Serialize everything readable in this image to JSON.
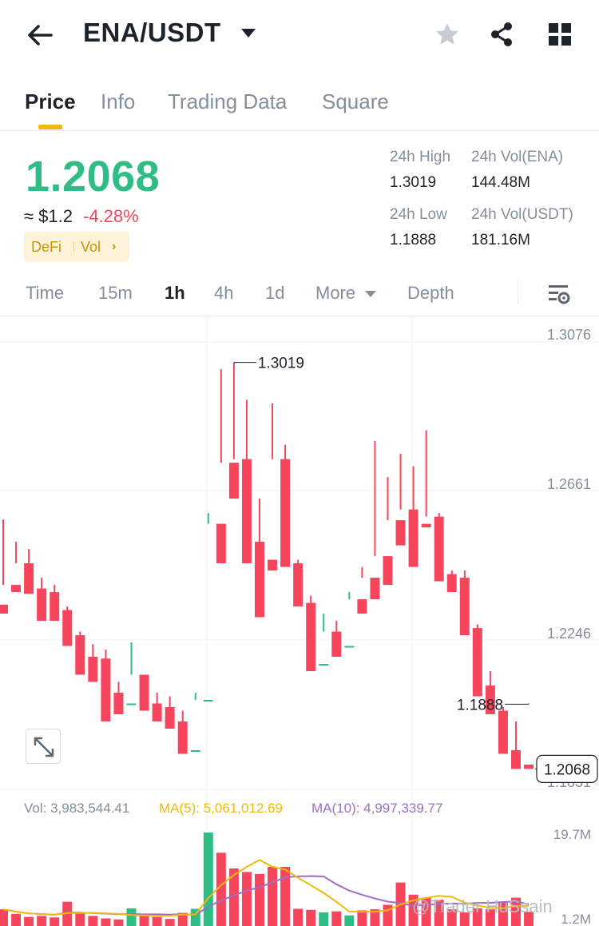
{
  "header": {
    "pair": "ENA/USDT",
    "icons": [
      "back-arrow-icon",
      "caret-down-icon",
      "star-icon",
      "share-icon",
      "grid-icon"
    ]
  },
  "tabs": [
    "Price",
    "Info",
    "Trading Data",
    "Square"
  ],
  "active_tab": "Price",
  "price": {
    "last": "1.2068",
    "approx": "≈ $1.2",
    "change": "-4.28%",
    "tags": [
      "DeFi",
      "Vol"
    ]
  },
  "stats": {
    "high_label": "24h High",
    "high": "1.3019",
    "low_label": "24h Low",
    "low": "1.1888",
    "vol_ena_label": "24h Vol(ENA)",
    "vol_ena": "144.48M",
    "vol_usdt_label": "24h Vol(USDT)",
    "vol_usdt": "181.16M"
  },
  "intervals": {
    "items": [
      "Time",
      "15m",
      "1h",
      "4h",
      "1d",
      "More",
      "Depth"
    ],
    "active": "1h"
  },
  "colors": {
    "up": "#2ebd85",
    "down": "#f6465d",
    "accent": "#f0b90b",
    "ma5": "#f0b90b",
    "ma10": "#9d6fc4"
  },
  "chart_data": {
    "type": "candlestick",
    "y_axis_labels": [
      "1.3076",
      "1.2661",
      "1.2246",
      "1.1831"
    ],
    "ylim": [
      1.1831,
      1.3076
    ],
    "last_price_tag": "1.2068",
    "high_marker": "1.3019",
    "low_marker": "1.1888",
    "candles": [
      [
        1.2345,
        1.2582,
        1.24,
        1.232
      ],
      [
        1.24,
        1.252,
        1.246,
        1.238
      ],
      [
        1.246,
        1.25,
        1.239,
        1.2375
      ],
      [
        1.239,
        1.242,
        1.238,
        1.23
      ],
      [
        1.238,
        1.24,
        1.233,
        1.23
      ],
      [
        1.233,
        1.234,
        1.226,
        1.223
      ],
      [
        1.226,
        1.227,
        1.22,
        1.215
      ],
      [
        1.22,
        1.2235,
        1.2195,
        1.213
      ],
      [
        1.2195,
        1.222,
        1.21,
        1.202
      ],
      [
        1.21,
        1.213,
        1.207,
        1.204
      ],
      [
        1.207,
        1.224,
        1.215,
        1.207
      ],
      [
        1.215,
        1.215,
        1.207,
        1.205
      ],
      [
        1.207,
        1.21,
        1.206,
        1.202
      ],
      [
        1.206,
        1.209,
        1.202,
        1.2
      ],
      [
        1.202,
        1.205,
        1.194,
        1.193
      ],
      [
        1.194,
        1.21,
        1.208,
        1.194
      ],
      [
        1.208,
        1.26,
        1.257,
        1.208
      ],
      [
        1.257,
        1.3,
        1.274,
        1.246
      ],
      [
        1.274,
        1.3019,
        1.275,
        1.264
      ],
      [
        1.275,
        1.2915,
        1.252,
        1.246
      ],
      [
        1.252,
        1.264,
        1.247,
        1.231
      ],
      [
        1.247,
        1.2905,
        1.275,
        1.244
      ],
      [
        1.275,
        1.279,
        1.246,
        1.245
      ],
      [
        1.246,
        1.247,
        1.235,
        1.234
      ],
      [
        1.235,
        1.237,
        1.218,
        1.216
      ],
      [
        1.218,
        1.232,
        1.227,
        1.218
      ],
      [
        1.227,
        1.23,
        1.223,
        1.22
      ],
      [
        1.223,
        1.238,
        1.236,
        1.223
      ],
      [
        1.236,
        1.245,
        1.242,
        1.232
      ],
      [
        1.242,
        1.28,
        1.248,
        1.236
      ],
      [
        1.248,
        1.27,
        1.258,
        1.24
      ],
      [
        1.258,
        1.2765,
        1.261,
        1.251
      ],
      [
        1.261,
        1.273,
        1.257,
        1.245
      ],
      [
        1.257,
        1.283,
        1.259,
        1.256
      ],
      [
        1.259,
        1.26,
        1.243,
        1.241
      ],
      [
        1.243,
        1.244,
        1.242,
        1.238
      ],
      [
        1.242,
        1.244,
        1.228,
        1.226
      ],
      [
        1.228,
        1.229,
        1.212,
        1.209
      ],
      [
        1.212,
        1.216,
        1.205,
        1.204
      ],
      [
        1.205,
        1.206,
        1.194,
        1.193
      ],
      [
        1.194,
        1.202,
        1.19,
        1.1888
      ],
      [
        1.19,
        1.207,
        1.2068,
        1.1888
      ]
    ],
    "volume": {
      "legend_vol": "Vol: 3,983,544.41",
      "legend_ma5": "MA(5): 5,061,012.69",
      "legend_ma10": "MA(10): 4,997,339.77",
      "y_labels": [
        "19.7M",
        "1.2M"
      ],
      "ylim": [
        1.2,
        19.7
      ],
      "values": [
        4.5,
        3.6,
        3.0,
        3.2,
        2.9,
        6.0,
        3.7,
        3.2,
        2.7,
        2.5,
        4.7,
        3.3,
        3.0,
        2.6,
        3.8,
        4.6,
        19.7,
        15.7,
        12.6,
        11.9,
        11.5,
        12.9,
        12.9,
        4.6,
        4.4,
        3.9,
        4.1,
        3.3,
        4.3,
        4.5,
        5.4,
        9.8,
        7.4,
        6.8,
        6.4,
        4.5,
        3.9,
        4.7,
        4.5,
        6.0,
        6.8,
        4.0
      ]
    },
    "watermark_text": "@Trader HuSsain"
  }
}
